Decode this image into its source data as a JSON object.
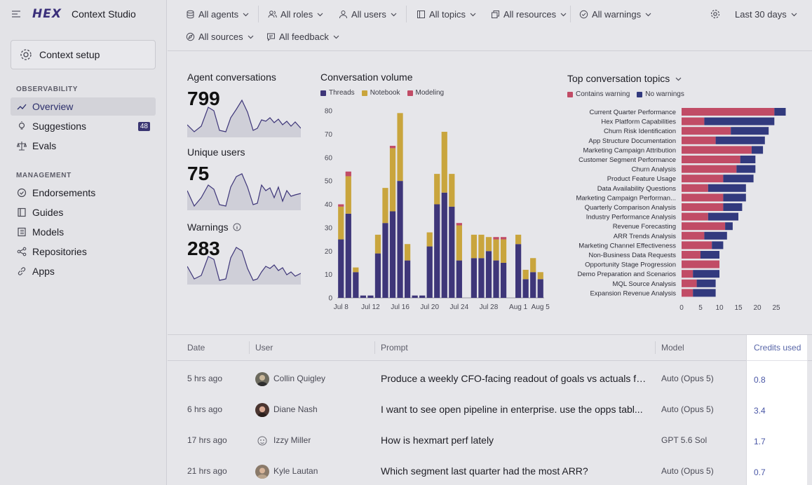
{
  "app": {
    "logo": "HEX",
    "title": "Context Studio",
    "context_setup": "Context setup"
  },
  "sidebar": {
    "observability_label": "OBSERVABILITY",
    "management_label": "MANAGEMENT",
    "observability_items": [
      {
        "label": "Overview",
        "icon": "trend-icon",
        "active": true
      },
      {
        "label": "Suggestions",
        "icon": "lightbulb-icon",
        "badge": "48"
      },
      {
        "label": "Evals",
        "icon": "scale-icon"
      }
    ],
    "management_items": [
      {
        "label": "Endorsements",
        "icon": "check-circle-icon"
      },
      {
        "label": "Guides",
        "icon": "book-icon"
      },
      {
        "label": "Models",
        "icon": "model-icon"
      },
      {
        "label": "Repositories",
        "icon": "branch-icon"
      },
      {
        "label": "Apps",
        "icon": "link-icon"
      }
    ]
  },
  "filters": {
    "agents": "All agents",
    "roles": "All roles",
    "users": "All users",
    "topics": "All topics",
    "resources": "All resources",
    "warnings": "All warnings",
    "sources": "All sources",
    "feedback": "All feedback",
    "date_range": "Last 30 days"
  },
  "metrics": {
    "conversations_title": "Agent conversations",
    "conversations_value": "799",
    "users_title": "Unique users",
    "users_value": "75",
    "warnings_title": "Warnings",
    "warnings_value": "283"
  },
  "volume": {
    "title": "Conversation volume",
    "legend": [
      "Threads",
      "Notebook",
      "Modeling"
    ],
    "colors": {
      "threads": "#3e3679",
      "notebook": "#c9a53d",
      "modeling": "#c14c66"
    }
  },
  "topics": {
    "title": "Top conversation topics",
    "legend": [
      "Contains warning",
      "No warnings"
    ],
    "colors": {
      "warning": "#c14c66",
      "none": "#323a7e"
    }
  },
  "chart_data": [
    {
      "type": "bar",
      "title": "Conversation volume",
      "stacked": true,
      "ylim": [
        0,
        80
      ],
      "yticks": [
        0,
        10,
        20,
        30,
        40,
        50,
        60,
        70,
        80
      ],
      "xtick_labels": [
        "Jul 8",
        "Jul 12",
        "Jul 16",
        "Jul 20",
        "Jul 24",
        "Jul 28",
        "Aug 1",
        "Aug 5"
      ],
      "series": [
        {
          "name": "Threads",
          "values": [
            25,
            36,
            11,
            1,
            1,
            19,
            32,
            37,
            50,
            16,
            1,
            1,
            22,
            40,
            45,
            39,
            16,
            0,
            17,
            17,
            20,
            16,
            15,
            0,
            23,
            8,
            11,
            8
          ]
        },
        {
          "name": "Notebook",
          "values": [
            14,
            16,
            2,
            0,
            0,
            8,
            15,
            27,
            29,
            7,
            0,
            0,
            6,
            13,
            26,
            14,
            15,
            0,
            10,
            10,
            6,
            9,
            10,
            0,
            4,
            4,
            6,
            3
          ]
        },
        {
          "name": "Modeling",
          "values": [
            1,
            2,
            0,
            0,
            0,
            0,
            0,
            1,
            0,
            0,
            0,
            0,
            0,
            0,
            0,
            0,
            1,
            0,
            0,
            0,
            0,
            1,
            1,
            0,
            0,
            0,
            0,
            0
          ]
        }
      ]
    },
    {
      "type": "bar",
      "title": "Top conversation topics",
      "orientation": "horizontal",
      "stacked": true,
      "xlim": [
        0,
        28
      ],
      "xticks": [
        0,
        5,
        10,
        15,
        20,
        25
      ],
      "categories": [
        "Current Quarter Performance",
        "Hex Platform Capabilities",
        "Churn Risk Identification",
        "App Structure Documentation",
        "Marketing Campaign Attribution",
        "Customer Segment Performance",
        "Churn Analysis",
        "Product Feature Usage",
        "Data Availability Questions",
        "Marketing Campaign Performan...",
        "Quarterly Comparison Analysis",
        "Industry Performance Analysis",
        "Revenue Forecasting",
        "ARR Trends Analysis",
        "Marketing Channel Effectiveness",
        "Non-Business Data Requests",
        "Opportunity Stage Progression",
        "Demo Preparation and Scenarios",
        "MQL Source Analysis",
        "Expansion Revenue Analysis"
      ],
      "series": [
        {
          "name": "Contains warning",
          "values": [
            24.5,
            6,
            13,
            9,
            18.5,
            15.5,
            14.5,
            11,
            7,
            11,
            11,
            7,
            11.5,
            6,
            8,
            5,
            10,
            3,
            4,
            3
          ]
        },
        {
          "name": "No warnings",
          "values": [
            3,
            18.5,
            10,
            13,
            3,
            4,
            5,
            8,
            10,
            6,
            5,
            8,
            2,
            6,
            3,
            5,
            0,
            7,
            5,
            6
          ]
        }
      ]
    }
  ],
  "table": {
    "headers": {
      "date": "Date",
      "user": "User",
      "prompt": "Prompt",
      "model": "Model",
      "credits": "Credits used"
    },
    "rows": [
      {
        "date": "5 hrs ago",
        "user": "Collin Quigley",
        "prompt": "Produce a weekly CFO-facing readout of goals vs actuals fo...",
        "model": "Auto (Opus 5)",
        "credits": "0.8"
      },
      {
        "date": "6 hrs ago",
        "user": "Diane Nash",
        "prompt": "I want to see open pipeline in enterprise. use the opps tabl...",
        "model": "Auto (Opus 5)",
        "credits": "3.4"
      },
      {
        "date": "17 hrs ago",
        "user": "Izzy Miller",
        "prompt": "How is hexmart perf lately",
        "model": "GPT 5.6 Sol",
        "credits": "1.7"
      },
      {
        "date": "21 hrs ago",
        "user": "Kyle Lautan",
        "prompt": "Which segment last quarter had the most ARR?",
        "model": "Auto (Opus 5)",
        "credits": "0.7"
      }
    ]
  }
}
